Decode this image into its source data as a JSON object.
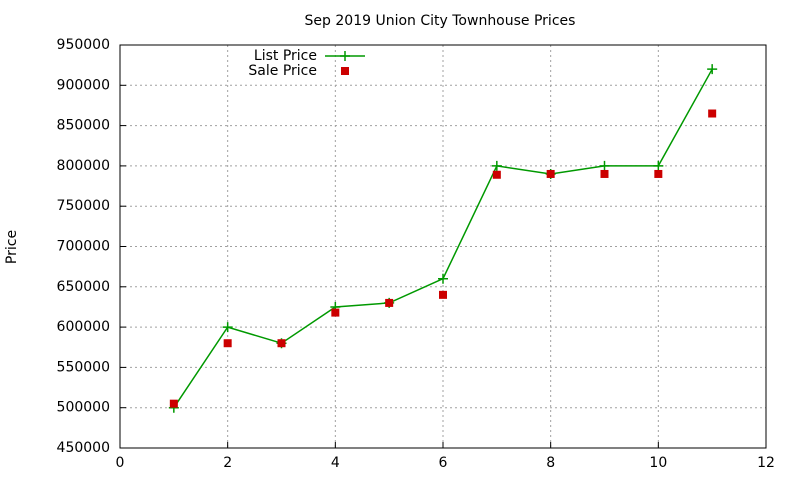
{
  "chart_data": {
    "type": "scatter",
    "title": "Sep 2019 Union City Townhouse Prices",
    "y_label": "Price",
    "x": [
      1,
      2,
      3,
      4,
      5,
      6,
      7,
      8,
      9,
      10,
      11
    ],
    "series": [
      {
        "name": "List Price",
        "color": "#009900",
        "style": "linespoints",
        "marker": "plus",
        "values": [
          500000,
          600000,
          580000,
          625000,
          630000,
          660000,
          800000,
          790000,
          800000,
          800000,
          920000
        ]
      },
      {
        "name": "Sale Price",
        "color": "#cc0000",
        "style": "points",
        "marker": "square",
        "values": [
          505000,
          580000,
          580000,
          618000,
          630000,
          640000,
          789000,
          790000,
          790000,
          790000,
          865000
        ]
      }
    ],
    "xlim": [
      0,
      12
    ],
    "xticks": [
      0,
      2,
      4,
      6,
      8,
      10,
      12
    ],
    "ylim": [
      450000,
      950000
    ],
    "yticks": [
      450000,
      500000,
      550000,
      600000,
      650000,
      700000,
      750000,
      800000,
      850000,
      900000,
      950000
    ],
    "grid": true,
    "legend": "top-left"
  }
}
